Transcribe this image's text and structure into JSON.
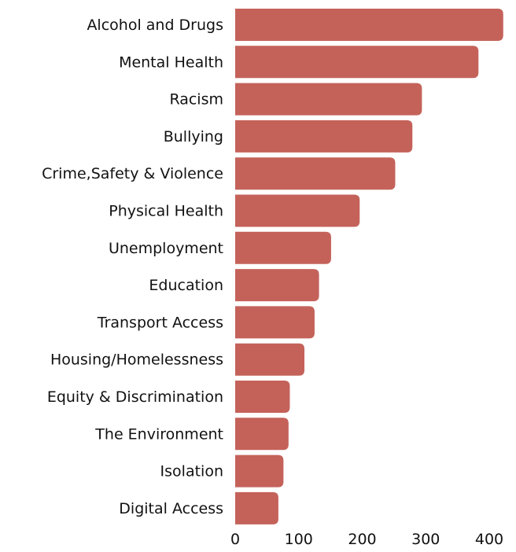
{
  "chart_data": {
    "type": "bar",
    "orientation": "horizontal",
    "categories": [
      "Alcohol and Drugs",
      "Mental Health",
      "Racism",
      "Bullying",
      "Crime,Safety & Violence",
      "Physical Health",
      "Unemployment",
      "Education",
      "Transport Access",
      "Housing/Homelessness",
      "Equity & Discrimination",
      "The Environment",
      "Isolation",
      "Digital Access"
    ],
    "values": [
      422,
      383,
      294,
      279,
      252,
      196,
      151,
      132,
      125,
      109,
      86,
      84,
      76,
      68
    ],
    "xlim": [
      0,
      420
    ],
    "xticks": [
      "0",
      "100",
      "200",
      "300",
      "400"
    ],
    "xtick_values": [
      0,
      100,
      200,
      300,
      400
    ],
    "title": "",
    "xlabel": "",
    "ylabel": "",
    "grid": false,
    "legend": "none",
    "bar_color": "#c4625a"
  }
}
